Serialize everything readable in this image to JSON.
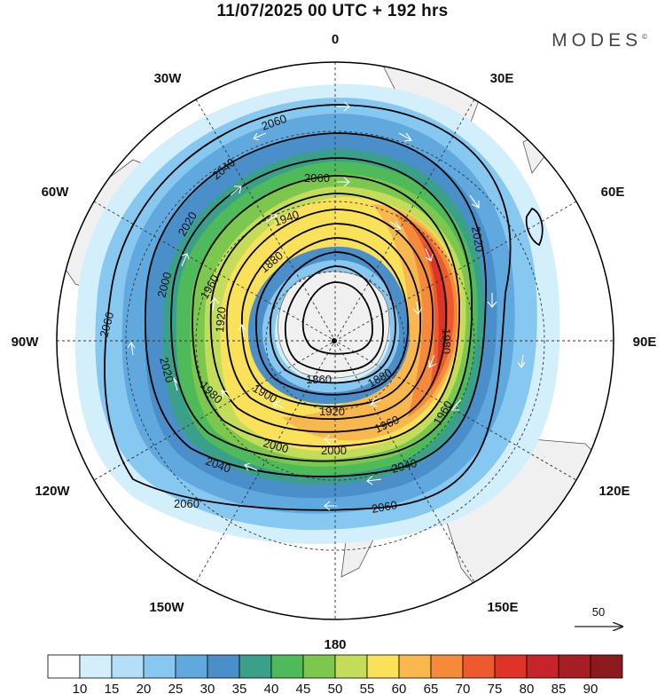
{
  "title": "11/07/2025  00 UTC  + 192 hrs",
  "brand": "MODES",
  "brand_mark": "©",
  "longitude_labels": {
    "top": "0",
    "bottom": "180",
    "left": "90W",
    "right": "90E",
    "w30": "30W",
    "e30": "30E",
    "w60": "60W",
    "e60": "60E",
    "w120": "120W",
    "e120": "120E",
    "w150": "150W",
    "e150": "150E"
  },
  "contour_labels": {
    "c2060a": "2060",
    "c2060b": "2060",
    "c2060c": "2060",
    "c2060d": "2060",
    "c2060e": "2060",
    "c2040a": "2040",
    "c2040b": "2040",
    "c2040c": "2040",
    "c2020a": "2020",
    "c2020b": "2020",
    "c2020c": "2020",
    "c2000a": "2000",
    "c2000b": "2000",
    "c2000c": "2000",
    "c1980a": "1980",
    "c1980b": "1980",
    "c1960a": "1960",
    "c1960b": "1960",
    "c1960c": "1960",
    "c1940": "1940",
    "c1920a": "1920",
    "c1920b": "1920",
    "c1900": "1900",
    "c1880a": "1880",
    "c1880b": "1880",
    "c1860": "1860"
  },
  "vector_reference": {
    "value": "50"
  },
  "colorbar": {
    "colors": [
      "#ffffff",
      "#d4effc",
      "#b3e0f7",
      "#86c8ef",
      "#5fa9df",
      "#4a8fc9",
      "#3ba08a",
      "#4fba5a",
      "#7cc84e",
      "#c3dc5a",
      "#f9e15a",
      "#f8b84e",
      "#f58a3a",
      "#ec5a2d",
      "#dc3427",
      "#c4242a",
      "#a61e24",
      "#8c1a1c"
    ],
    "ticks": [
      "10",
      "15",
      "20",
      "25",
      "30",
      "35",
      "40",
      "45",
      "50",
      "55",
      "60",
      "65",
      "70",
      "75",
      "80",
      "85",
      "90"
    ]
  },
  "chart_data": {
    "type": "polar stereographic map (Southern Hemisphere)",
    "field_shaded": "wind speed",
    "shaded_levels": [
      10,
      15,
      20,
      25,
      30,
      35,
      40,
      45,
      50,
      55,
      60,
      65,
      70,
      75,
      80,
      85,
      90
    ],
    "contour_field": "geopotential height",
    "contour_levels": [
      1860,
      1880,
      1900,
      1920,
      1940,
      1960,
      1980,
      2000,
      2020,
      2040,
      2060
    ],
    "jet_maximum_sector": "30E-90E",
    "jet_maximum_range": [
      75,
      85
    ],
    "reference_vector": 50
  }
}
